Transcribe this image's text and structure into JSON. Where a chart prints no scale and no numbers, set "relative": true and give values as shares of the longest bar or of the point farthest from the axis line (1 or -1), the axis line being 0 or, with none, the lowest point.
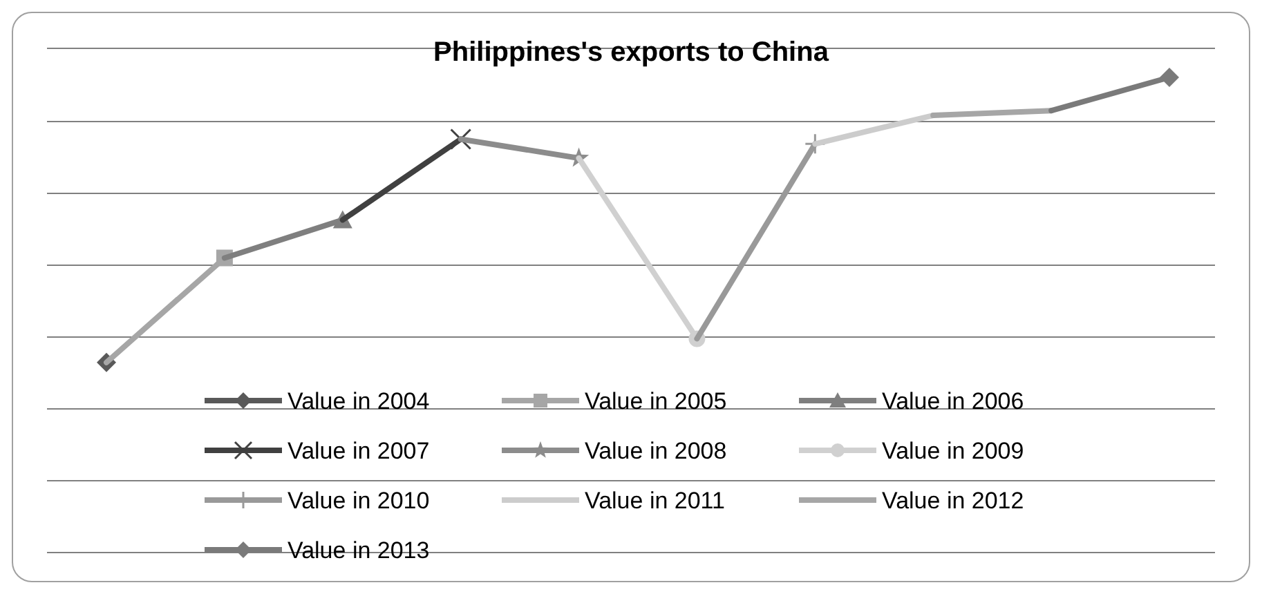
{
  "chart_data": {
    "type": "line",
    "title": "Philippines's exports to China",
    "relative": true,
    "grid": "y",
    "legend": "bottom",
    "categories": [
      null,
      null,
      null,
      null,
      null,
      null,
      null,
      null,
      null,
      null
    ],
    "series": [
      {
        "name": "Value in 2004",
        "color": "#595959",
        "marker": "diamond",
        "values": [
          0.4,
          null,
          null,
          null,
          null,
          null,
          null,
          null,
          null,
          null
        ]
      },
      {
        "name": "Value in 2005",
        "color": "#a6a6a6",
        "marker": "square",
        "values": [
          0.4,
          0.62,
          null,
          null,
          null,
          null,
          null,
          null,
          null,
          null
        ]
      },
      {
        "name": "Value in 2006",
        "color": "#7f7f7f",
        "marker": "triangle",
        "values": [
          null,
          0.62,
          0.7,
          null,
          null,
          null,
          null,
          null,
          null,
          null
        ]
      },
      {
        "name": "Value in 2007",
        "color": "#404040",
        "marker": "cross",
        "values": [
          null,
          null,
          0.7,
          0.87,
          null,
          null,
          null,
          null,
          null,
          null
        ]
      },
      {
        "name": "Value in 2008",
        "color": "#8c8c8c",
        "marker": "star",
        "values": [
          null,
          null,
          null,
          0.87,
          0.83,
          null,
          null,
          null,
          null,
          null
        ]
      },
      {
        "name": "Value in 2009",
        "color": "#d0d0d0",
        "marker": "circle",
        "values": [
          null,
          null,
          null,
          null,
          0.83,
          0.45,
          null,
          null,
          null,
          null
        ]
      },
      {
        "name": "Value in 2010",
        "color": "#999999",
        "marker": "plus",
        "values": [
          null,
          null,
          null,
          null,
          null,
          0.45,
          0.86,
          null,
          null,
          null
        ]
      },
      {
        "name": "Value in 2011",
        "color": "#cccccc",
        "marker": "none",
        "values": [
          null,
          null,
          null,
          null,
          null,
          null,
          0.86,
          0.92,
          null,
          null
        ]
      },
      {
        "name": "Value in 2012",
        "color": "#a6a6a6",
        "marker": "none",
        "values": [
          null,
          null,
          null,
          null,
          null,
          null,
          null,
          0.92,
          0.93,
          null
        ]
      },
      {
        "name": "Value in 2013",
        "color": "#7a7a7a",
        "marker": "diamond",
        "values": [
          null,
          null,
          null,
          null,
          null,
          null,
          null,
          null,
          0.93,
          1
        ]
      }
    ]
  }
}
